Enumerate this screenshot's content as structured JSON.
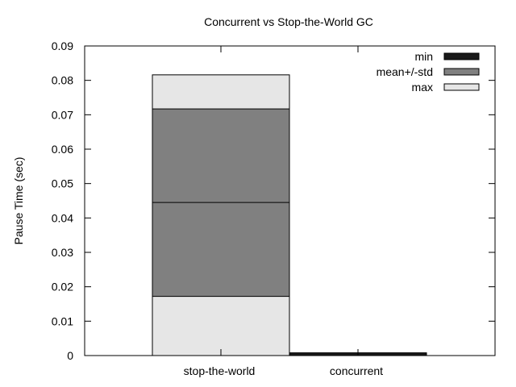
{
  "chart_data": {
    "type": "bar",
    "title": "Concurrent vs Stop-the-World GC",
    "xlabel": "",
    "ylabel": "Pause Time (sec)",
    "ylim": [
      0,
      0.09
    ],
    "yticks": [
      0,
      0.01,
      0.02,
      0.03,
      0.04,
      0.05,
      0.06,
      0.07,
      0.08,
      0.09
    ],
    "ytick_labels": [
      "0",
      "0.01",
      "0.02",
      "0.03",
      "0.04",
      "0.05",
      "0.06",
      "0.07",
      "0.08",
      "0.09"
    ],
    "categories": [
      "stop-the-world",
      "concurrent"
    ],
    "legend_position": "top-right",
    "grid": false,
    "series": [
      {
        "name": "min",
        "color": "#1a1a1a"
      },
      {
        "name": "mean+/-std",
        "color": "#808080"
      },
      {
        "name": "max",
        "color": "#e6e6e6"
      }
    ],
    "bars": [
      {
        "category": "stop-the-world",
        "min": 0,
        "lower": 0.0172,
        "mean": 0.0445,
        "upper": 0.0717,
        "max": 0.0816
      },
      {
        "category": "concurrent",
        "min": 0,
        "lower": 0.0008,
        "mean": 0.0008,
        "upper": 0.0008,
        "max": 0.0008
      }
    ]
  }
}
